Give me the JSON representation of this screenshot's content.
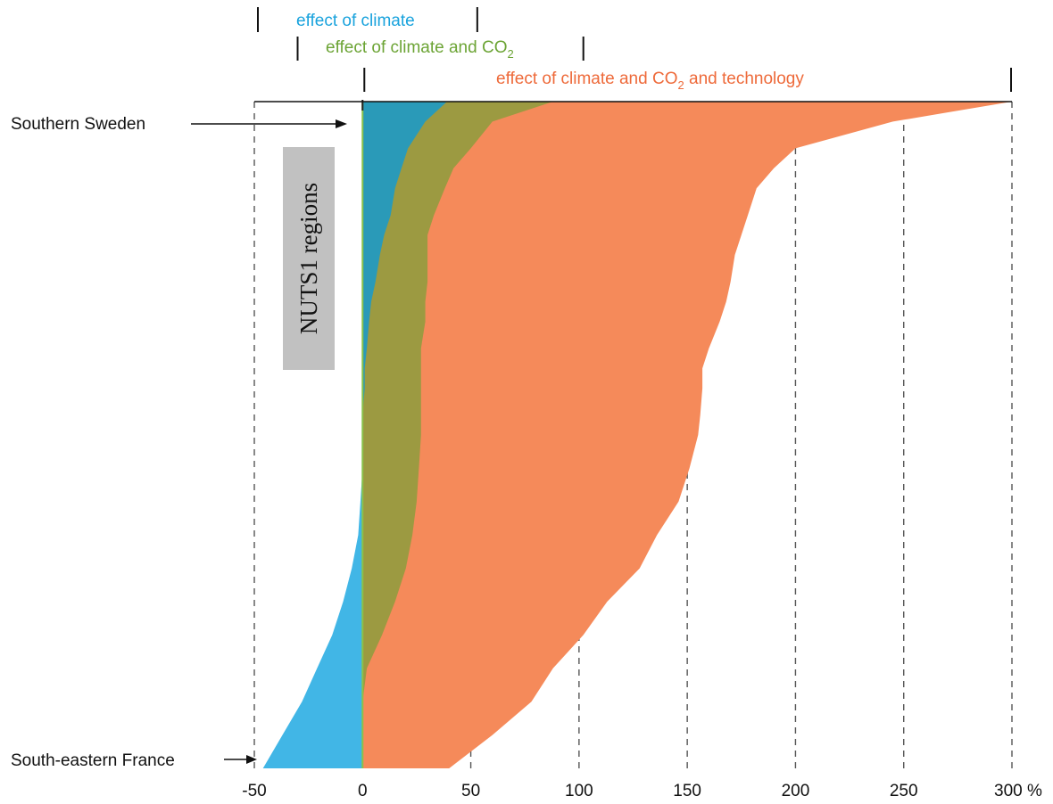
{
  "chart_data": {
    "type": "area",
    "x_tick_labels": [
      "-50",
      "0",
      "50",
      "100",
      "150",
      "200",
      "250",
      "300 %"
    ],
    "x_ticks": [
      -50,
      0,
      50,
      100,
      150,
      200,
      250,
      300
    ],
    "xlim": [
      -50,
      300
    ],
    "grid": "dashed vertical lines",
    "y_axis_label": "NUTS1 regions",
    "region_top_label": "Southern Sweden",
    "region_bottom_label": "South-eastern France",
    "headers": {
      "climate": "effect of climate",
      "climate_co2_prefix": "effect of climate and CO",
      "climate_co2_sub": "2",
      "tech_prefix": "effect of climate and CO",
      "tech_sub": "2",
      "tech_suffix": " and technology"
    },
    "header_ranges": {
      "climate": [
        -50,
        53
      ],
      "climate_co2": [
        -30,
        102
      ],
      "climate_co2_technology": [
        0,
        300
      ]
    },
    "colors": {
      "climate": "#41b6e6",
      "climate_co2": "#9c9a41",
      "climate_co2_technology": "#f58a5a",
      "climate_co2_lower_overlap": "#93cba6",
      "climate_upper_overlap": "#2a9ab8",
      "climate_label": "#1aa3dd",
      "climate_co2_label": "#6ca435",
      "technology_label": "#ee6a3a"
    },
    "series": [
      {
        "name": "effect of climate",
        "points": [
          [
            0,
            39
          ],
          [
            3,
            29
          ],
          [
            7,
            21
          ],
          [
            10,
            18
          ],
          [
            13,
            15
          ],
          [
            17,
            13
          ],
          [
            20,
            10
          ],
          [
            23,
            8
          ],
          [
            27,
            6
          ],
          [
            30,
            4
          ],
          [
            33,
            3
          ],
          [
            37,
            2
          ],
          [
            40,
            1
          ],
          [
            43,
            1
          ],
          [
            47,
            0
          ],
          [
            50,
            0
          ],
          [
            55,
            0
          ],
          [
            60,
            -1
          ],
          [
            65,
            -2
          ],
          [
            70,
            -5
          ],
          [
            75,
            -9
          ],
          [
            80,
            -14
          ],
          [
            85,
            -21
          ],
          [
            90,
            -28
          ],
          [
            95,
            -37
          ],
          [
            100,
            -46
          ]
        ]
      },
      {
        "name": "effect of climate and CO2",
        "points": [
          [
            0,
            88
          ],
          [
            3,
            60
          ],
          [
            7,
            50
          ],
          [
            10,
            42
          ],
          [
            13,
            38
          ],
          [
            17,
            33
          ],
          [
            20,
            30
          ],
          [
            23,
            30
          ],
          [
            27,
            30
          ],
          [
            30,
            29
          ],
          [
            33,
            29
          ],
          [
            37,
            27
          ],
          [
            40,
            27
          ],
          [
            43,
            27
          ],
          [
            47,
            27
          ],
          [
            50,
            27
          ],
          [
            55,
            26
          ],
          [
            60,
            25
          ],
          [
            65,
            23
          ],
          [
            70,
            20
          ],
          [
            75,
            15
          ],
          [
            80,
            9
          ],
          [
            85,
            2
          ],
          [
            90,
            -5
          ],
          [
            95,
            -16
          ],
          [
            100,
            -28
          ]
        ]
      },
      {
        "name": "effect of climate and CO2 and technology",
        "points": [
          [
            0,
            300
          ],
          [
            3,
            245
          ],
          [
            7,
            200
          ],
          [
            10,
            190
          ],
          [
            13,
            182
          ],
          [
            17,
            178
          ],
          [
            20,
            175
          ],
          [
            23,
            172
          ],
          [
            27,
            170
          ],
          [
            30,
            168
          ],
          [
            33,
            165
          ],
          [
            37,
            160
          ],
          [
            40,
            157
          ],
          [
            43,
            157
          ],
          [
            47,
            156
          ],
          [
            50,
            155
          ],
          [
            55,
            151
          ],
          [
            60,
            146
          ],
          [
            65,
            136
          ],
          [
            70,
            128
          ],
          [
            75,
            113
          ],
          [
            80,
            102
          ],
          [
            85,
            88
          ],
          [
            90,
            78
          ],
          [
            95,
            60
          ],
          [
            100,
            40
          ]
        ]
      }
    ]
  }
}
